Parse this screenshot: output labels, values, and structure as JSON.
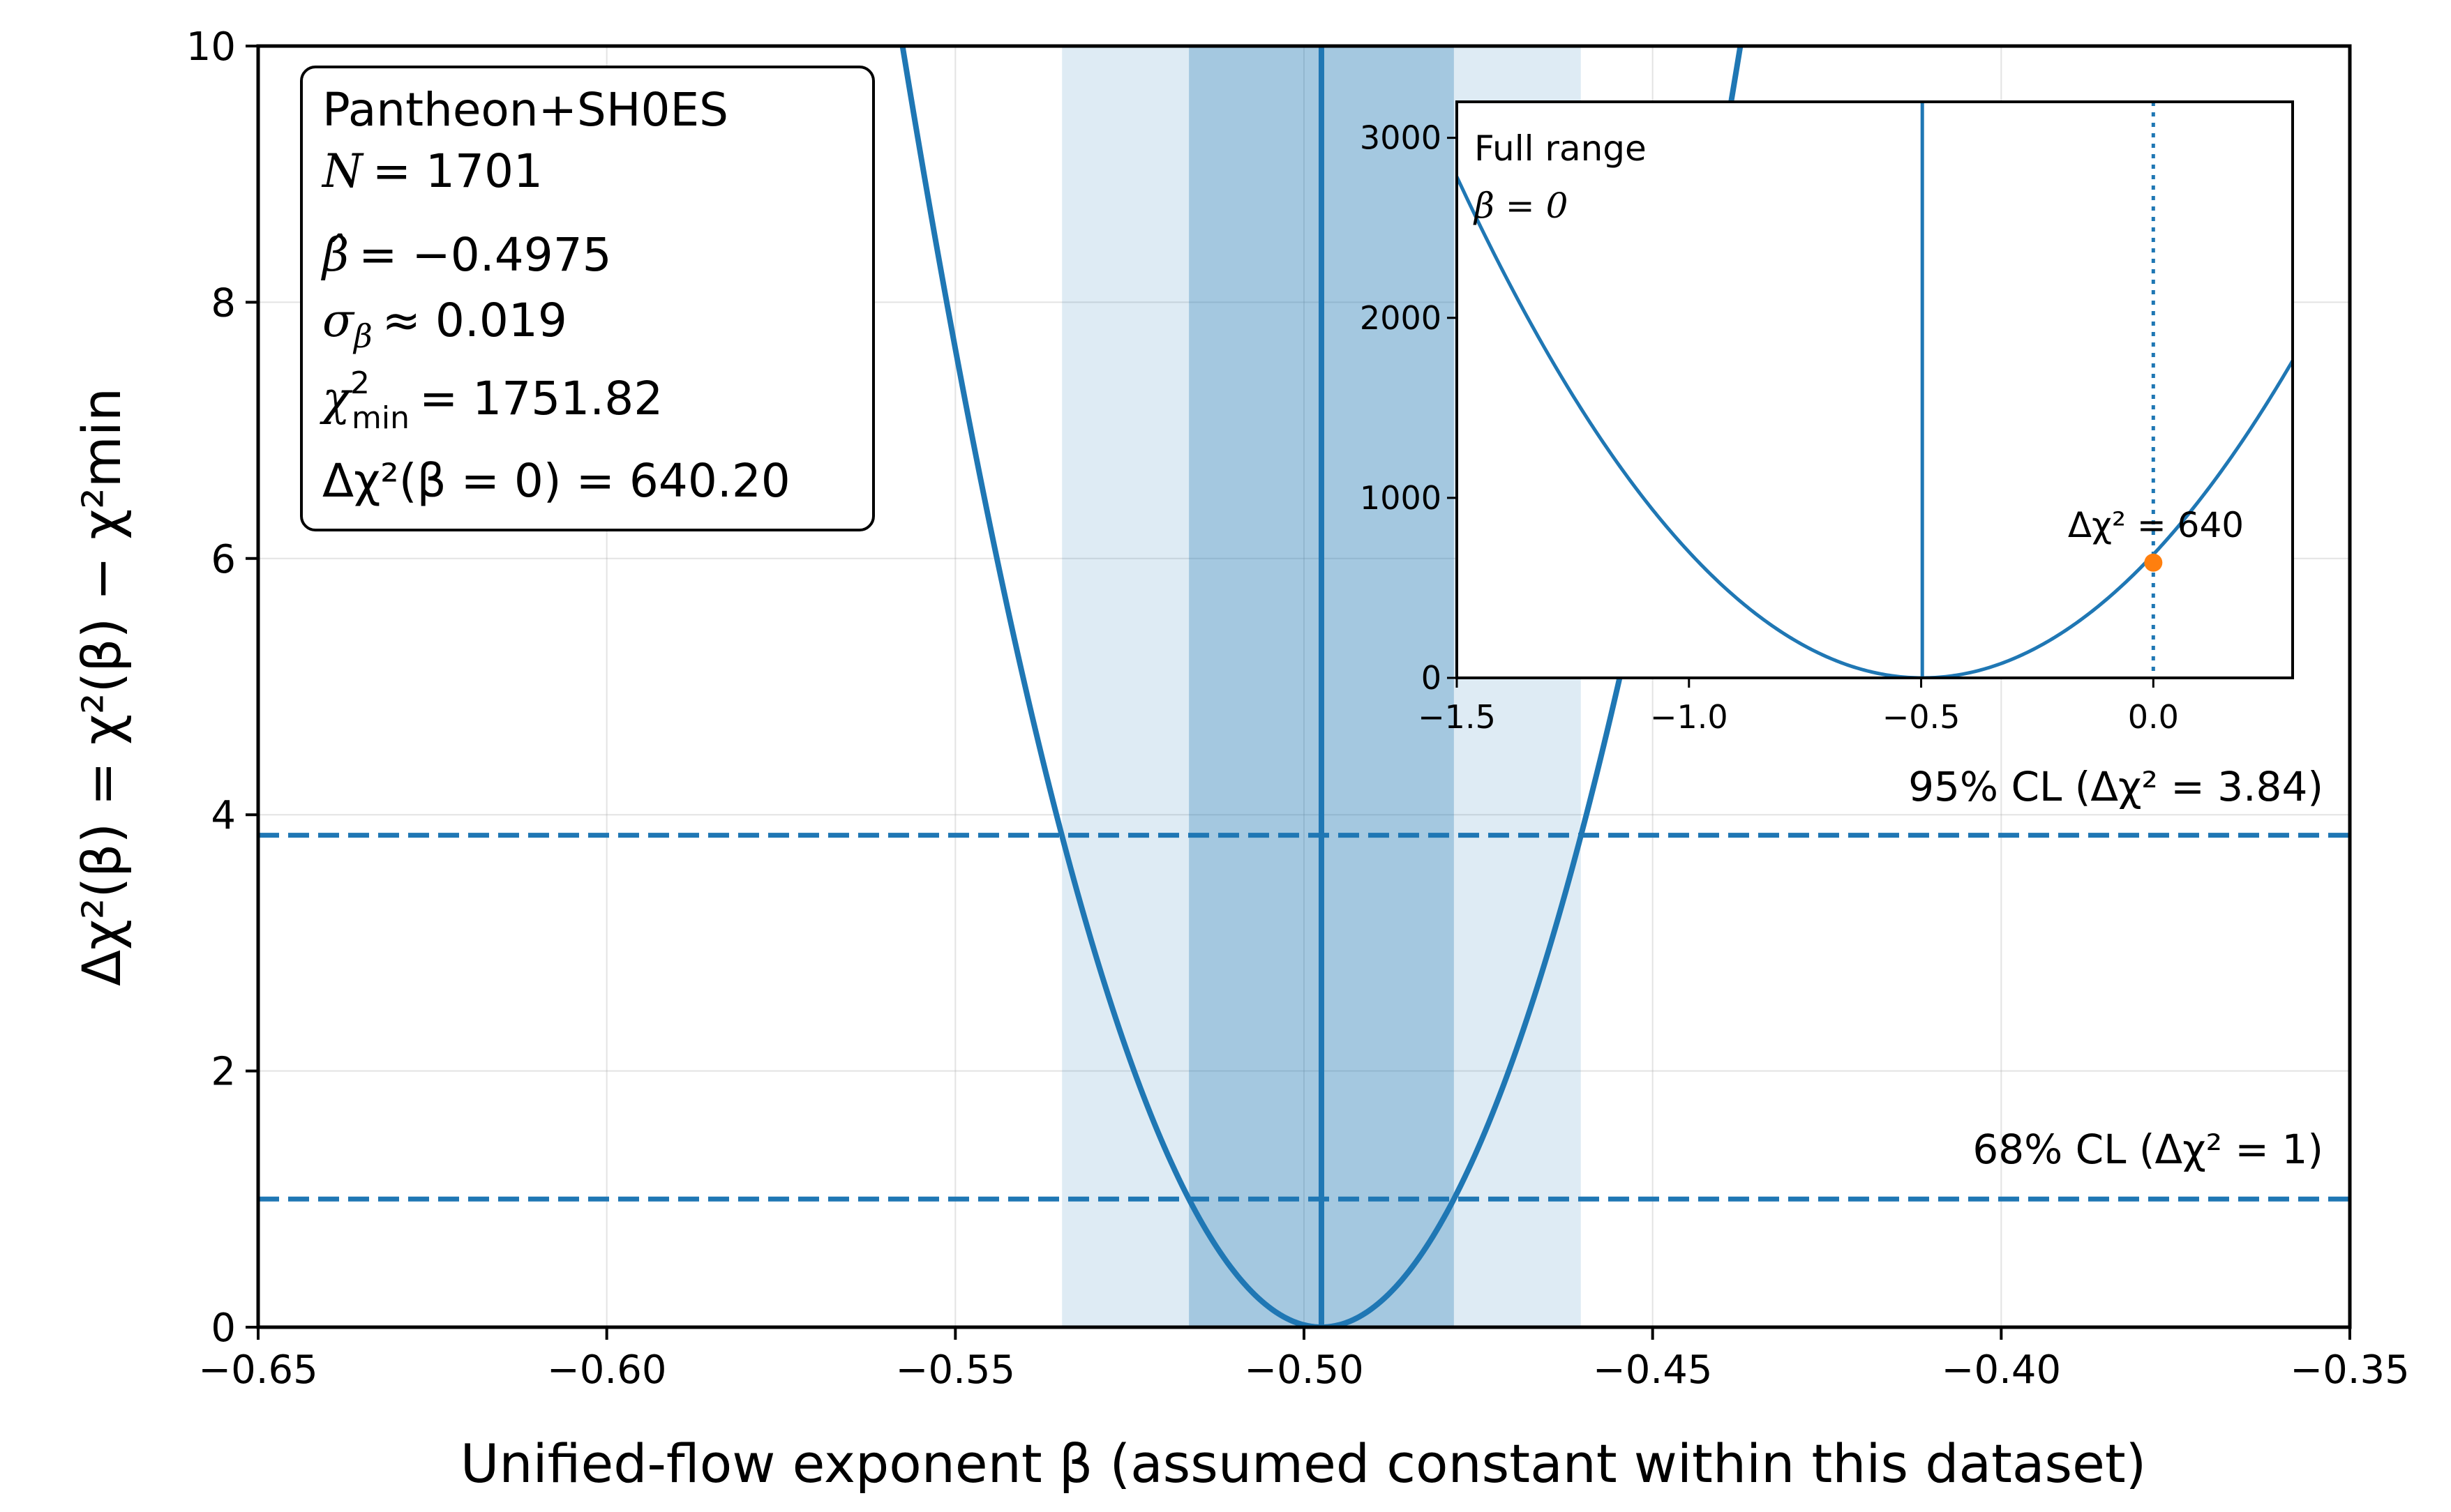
{
  "chart_data": [
    {
      "type": "line",
      "name": "main",
      "xlabel": "Unified-flow exponent β (assumed constant within this dataset)",
      "ylabel": "Δχ²(β) = χ²(β) − χ²min",
      "xlim": [
        -0.65,
        -0.35
      ],
      "ylim": [
        0,
        10
      ],
      "xticks": [
        -0.65,
        -0.6,
        -0.55,
        -0.5,
        -0.45,
        -0.4,
        -0.35
      ],
      "xtick_labels": [
        "−0.65",
        "−0.60",
        "−0.55",
        "−0.50",
        "−0.45",
        "−0.40",
        "−0.35"
      ],
      "yticks": [
        0,
        2,
        4,
        6,
        8,
        10
      ],
      "ytick_labels": [
        "0",
        "2",
        "4",
        "6",
        "8",
        "10"
      ],
      "grid": true,
      "series": [
        {
          "name": "Δχ² profile",
          "form": "parabola",
          "center": -0.4975,
          "sigma": 0.019,
          "color": "#1f77b4"
        }
      ],
      "vertical_lines": [
        {
          "name": "best fit",
          "x": -0.4975,
          "color": "#1f77b4"
        }
      ],
      "bands": [
        {
          "name": "95% band",
          "x0": -0.5347,
          "x1": -0.4603,
          "color": "#1f77b4",
          "opacity": 0.15
        },
        {
          "name": "68% band",
          "x0": -0.5165,
          "x1": -0.4785,
          "color": "#1f77b4",
          "opacity": 0.3
        }
      ],
      "hlines": [
        {
          "y": 1,
          "label": "68% CL (Δχ² = 1)",
          "style": "dashed",
          "color": "#1f77b4"
        },
        {
          "y": 3.84,
          "label": "95% CL (Δχ² = 3.84)",
          "style": "dashed",
          "color": "#1f77b4"
        }
      ]
    },
    {
      "type": "line",
      "name": "inset",
      "xlim": [
        -1.5,
        0.3
      ],
      "ylim": [
        0,
        3200
      ],
      "xticks": [
        -1.5,
        -1.0,
        -0.5,
        0.0
      ],
      "xtick_labels": [
        "−1.5",
        "−1.0",
        "−0.5",
        "0.0"
      ],
      "yticks": [
        0,
        1000,
        2000,
        3000
      ],
      "ytick_labels": [
        "0",
        "1000",
        "2000",
        "3000"
      ],
      "series": [
        {
          "name": "Δχ² full range",
          "form": "parabola",
          "center": -0.4975,
          "sigma": 0.019,
          "color": "#1f77b4"
        }
      ],
      "vertical_lines": [
        {
          "name": "best fit",
          "x": -0.4975,
          "style": "solid",
          "color": "#1f77b4"
        },
        {
          "name": "beta zero",
          "x": 0.0,
          "style": "dotted",
          "color": "#1f77b4"
        }
      ],
      "points": [
        {
          "x": 0.0,
          "y": 640.2,
          "color": "#ff7f0e",
          "label": "Δχ² = 640"
        }
      ],
      "notes": [
        "Full range",
        "β = 0"
      ]
    }
  ],
  "info_box": {
    "dataset": "Pantheon+SH0ES",
    "n_label": "N",
    "n_value": "= 1701",
    "beta_hat_label": "β̂",
    "beta_hat_value": "= −0.4975",
    "sigma_label": "σ",
    "sigma_sub": "β",
    "sigma_value": "≈ 0.019",
    "chi2min_label": "χ",
    "chi2min_sup": "2",
    "chi2min_sub": "min",
    "chi2min_value": "= 1751.82",
    "delta_chi2_value": "Δχ²(β = 0) = 640.20"
  }
}
